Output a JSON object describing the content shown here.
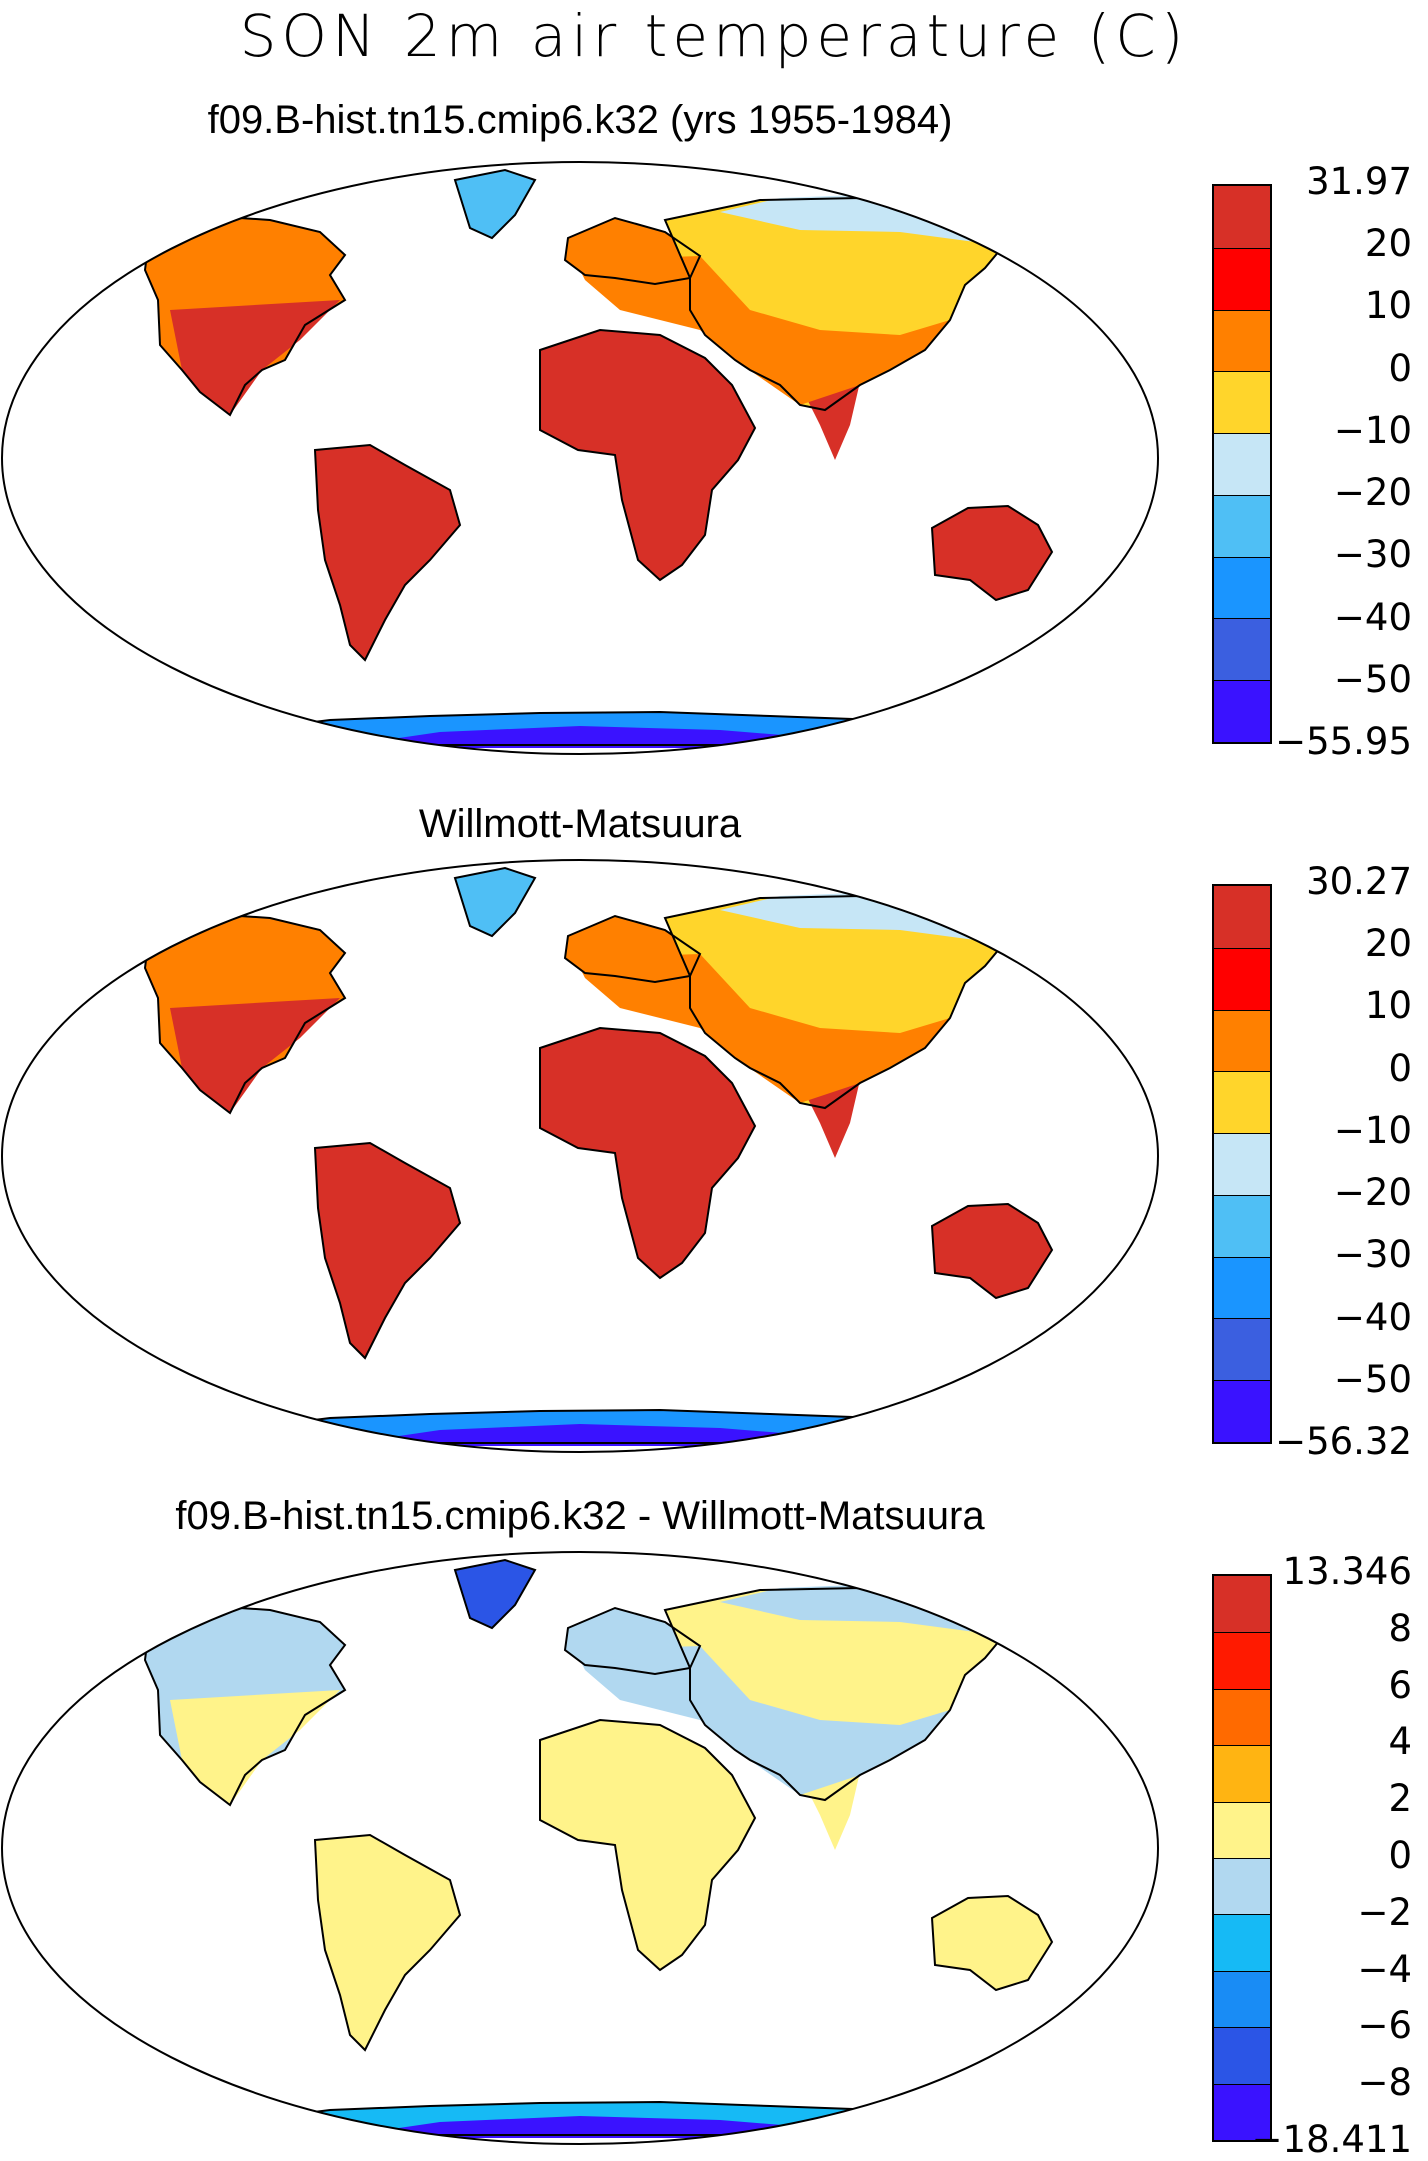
{
  "title": "SON 2m air temperature (C)",
  "panels": [
    {
      "title": "f09.B-hist.tn15.cmip6.k32 (yrs 1955-1984)",
      "colorbar": {
        "labels": [
          "31.97",
          "20",
          "10",
          "0",
          "−10",
          "−20",
          "−30",
          "−40",
          "−50",
          "−55.95"
        ],
        "colors": [
          "#d73027",
          "#ff0000",
          "#ff8000",
          "#ffd52b",
          "#c6e6f6",
          "#4fbff5",
          "#1a95ff",
          "#3b5fe0",
          "#3a12ff"
        ]
      },
      "fields": {
        "tropics": "#d73027",
        "midlat": "#ff8000",
        "highlat": "#ffd52b",
        "arctic": "#c6e6f6",
        "greenland": "#4fbff5",
        "antarctic_edge": "#1a95ff",
        "antarctic_core": "#3a12ff"
      }
    },
    {
      "title": "Willmott-Matsuura",
      "colorbar": {
        "labels": [
          "30.27",
          "20",
          "10",
          "0",
          "−10",
          "−20",
          "−30",
          "−40",
          "−50",
          "−56.32"
        ],
        "colors": [
          "#d73027",
          "#ff0000",
          "#ff8000",
          "#ffd52b",
          "#c6e6f6",
          "#4fbff5",
          "#1a95ff",
          "#3b5fe0",
          "#3a12ff"
        ]
      },
      "fields": {
        "tropics": "#d73027",
        "midlat": "#ff8000",
        "highlat": "#ffd52b",
        "arctic": "#c6e6f6",
        "greenland": "#4fbff5",
        "antarctic_edge": "#1a95ff",
        "antarctic_core": "#3a12ff"
      }
    },
    {
      "title": "f09.B-hist.tn15.cmip6.k32 - Willmott-Matsuura",
      "colorbar": {
        "labels": [
          "13.346",
          "8",
          "6",
          "4",
          "2",
          "0",
          "−2",
          "−4",
          "−6",
          "−8",
          "−18.411"
        ],
        "colors": [
          "#d73027",
          "#ff1a00",
          "#ff6a00",
          "#ffb412",
          "#fff38a",
          "#b1d8f0",
          "#16baf5",
          "#198cf5",
          "#2b55e6",
          "#3a12ff"
        ]
      },
      "fields": {
        "tropics": "#fff38a",
        "midlat": "#b1d8f0",
        "highlat": "#fff38a",
        "arctic": "#b1d8f0",
        "greenland": "#2b55e6",
        "antarctic_edge": "#16baf5",
        "antarctic_core": "#3a12ff"
      }
    }
  ]
}
